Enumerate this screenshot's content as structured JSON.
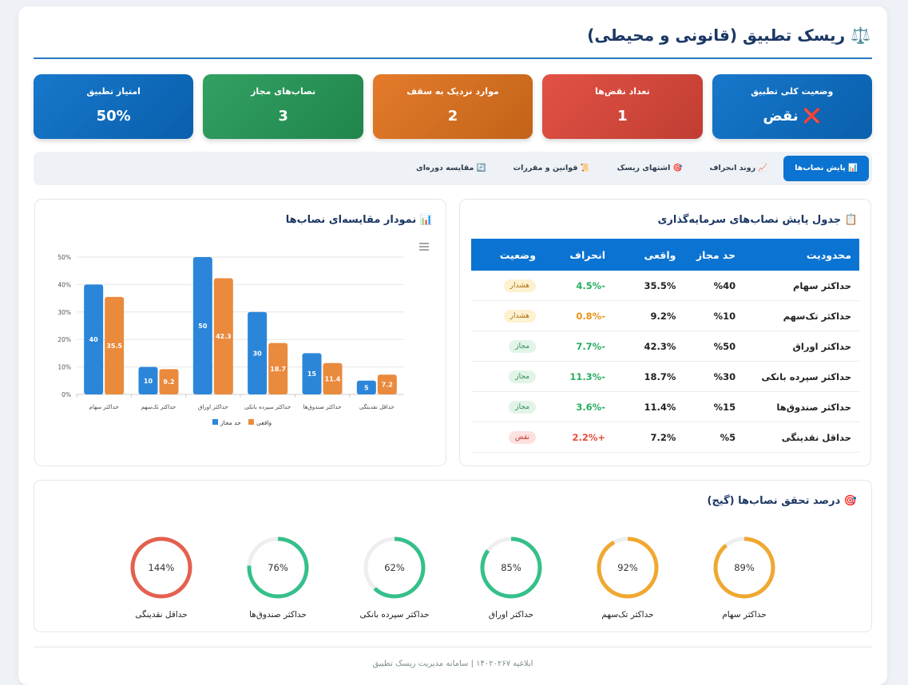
{
  "header": {
    "title": "⚖️ ریسک تطبیق (قانونی و محیطی)"
  },
  "kpis": [
    {
      "label": "وضعیت کلی تطبیق",
      "value": "❌ نقض",
      "color": "#0a6fc8"
    },
    {
      "label": "تعداد نقض‌ها",
      "value": "1",
      "color": "#e0473a"
    },
    {
      "label": "موارد نزدیک به سقف",
      "value": "2",
      "color": "#e2731d"
    },
    {
      "label": "نصاب‌های مجاز",
      "value": "3",
      "color": "#259b58"
    },
    {
      "label": "امتیاز تطبیق",
      "value": "50%",
      "color": "#0a6fc8"
    }
  ],
  "tabs": [
    {
      "label": "📊 پایش نصاب‌ها",
      "active": true
    },
    {
      "label": "📈 روند انحراف",
      "active": false
    },
    {
      "label": "🎯 اشتهای ریسک",
      "active": false
    },
    {
      "label": "📜 قوانین و مقررات",
      "active": false
    },
    {
      "label": "🔄 مقایسه دوره‌ای",
      "active": false
    }
  ],
  "table": {
    "title": "📋 جدول پایش نصاب‌های سرمایه‌گذاری",
    "columns": [
      "محدودیت",
      "حد مجاز",
      "واقعی",
      "انحراف",
      "وضعیت"
    ],
    "rows": [
      {
        "cells": [
          "حداکثر سهام",
          "%40",
          "35.5%",
          "-4.5%"
        ],
        "deviation_color": "#27ae60",
        "status": "هشدار",
        "status_bg": "#fdf1cf",
        "status_fg": "#a8741a"
      },
      {
        "cells": [
          "حداکثر تک‌سهم",
          "%10",
          "9.2%",
          "-0.8%"
        ],
        "deviation_color": "#e69318",
        "status": "هشدار",
        "status_bg": "#fdf1cf",
        "status_fg": "#a8741a"
      },
      {
        "cells": [
          "حداکثر اوراق",
          "%50",
          "42.3%",
          "-7.7%"
        ],
        "deviation_color": "#27ae60",
        "status": "مجاز",
        "status_bg": "#e2f4e8",
        "status_fg": "#2e8b57"
      },
      {
        "cells": [
          "حداکثر سپرده بانکی",
          "%30",
          "18.7%",
          "-11.3%"
        ],
        "deviation_color": "#27ae60",
        "status": "مجاز",
        "status_bg": "#e2f4e8",
        "status_fg": "#2e8b57"
      },
      {
        "cells": [
          "حداکثر صندوق‌ها",
          "%15",
          "11.4%",
          "-3.6%"
        ],
        "deviation_color": "#27ae60",
        "status": "مجاز",
        "status_bg": "#e2f4e8",
        "status_fg": "#2e8b57"
      },
      {
        "cells": [
          "حداقل نقدینگی",
          "%5",
          "7.2%",
          "+2.2%"
        ],
        "deviation_color": "#e74c3c",
        "status": "نقض",
        "status_bg": "#fde0e0",
        "status_fg": "#c0392b"
      }
    ]
  },
  "chart_data": {
    "type": "bar",
    "title": "📊 نمودار مقایسه‌ای نصاب‌ها",
    "categories": [
      "حداکثر سهام",
      "حداکثر تک‌سهم",
      "حداکثر اوراق",
      "حداکثر سپرده بانکی",
      "حداکثر صندوق‌ها",
      "حداقل نقدینگی"
    ],
    "series": [
      {
        "name": "حد مجاز",
        "color": "#2b86d9",
        "values": [
          40,
          10,
          50,
          30,
          15,
          5
        ]
      },
      {
        "name": "واقعی",
        "color": "#ea8a3d",
        "values": [
          35.5,
          9.2,
          42.3,
          18.7,
          11.4,
          7.2
        ]
      }
    ],
    "ylim": [
      0,
      50
    ],
    "yticks": [
      {
        "value": 0,
        "label": "0%"
      },
      {
        "value": 10,
        "label": "10%"
      },
      {
        "value": 20,
        "label": "20%"
      },
      {
        "value": 30,
        "label": "30%"
      },
      {
        "value": 40,
        "label": "40%"
      },
      {
        "value": 50,
        "label": "50%"
      }
    ],
    "grid": true
  },
  "gauges": {
    "title": "🎯 درصد تحقق نصاب‌ها (گیج)",
    "items": [
      {
        "label": "حداکثر سهام",
        "value": 89,
        "value_label": "89%",
        "color": "#f0a830"
      },
      {
        "label": "حداکثر تک‌سهم",
        "value": 92,
        "value_label": "92%",
        "color": "#f0a830"
      },
      {
        "label": "حداکثر اوراق",
        "value": 85,
        "value_label": "85%",
        "color": "#35c08a"
      },
      {
        "label": "حداکثر سپرده بانکی",
        "value": 62,
        "value_label": "62%",
        "color": "#35c08a"
      },
      {
        "label": "حداکثر صندوق‌ها",
        "value": 76,
        "value_label": "76%",
        "color": "#35c08a"
      },
      {
        "label": "حداقل نقدینگی",
        "value": 144,
        "value_label": "144%",
        "color": "#e4604f"
      }
    ]
  },
  "footer": "ابلاغیه ۱۴۰۲۰۲۶۷ | سامانه مدیریت ریسک تطبیق"
}
